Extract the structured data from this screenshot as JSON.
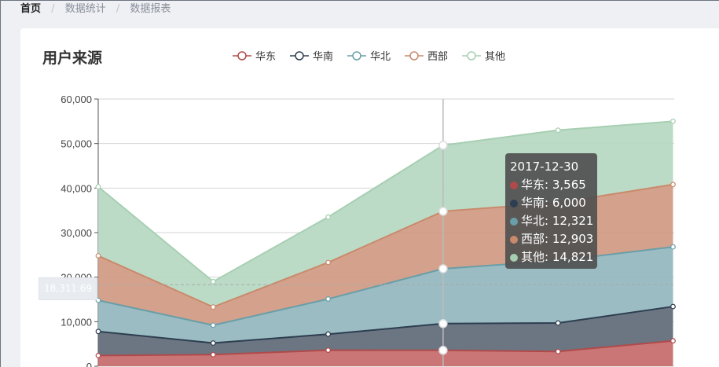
{
  "breadcrumb": {
    "home": "首页",
    "items": [
      "数据统计",
      "数据报表"
    ]
  },
  "card": {
    "title": "用户来源"
  },
  "tooltip": {
    "date": "2017-12-30",
    "rows": [
      {
        "name": "华东",
        "value": "3,565",
        "color": "#b04a4a"
      },
      {
        "name": "华南",
        "value": "6,000",
        "color": "#2d3e50"
      },
      {
        "name": "华北",
        "value": "12,321",
        "color": "#6a9ea8"
      },
      {
        "name": "西部",
        "value": "12,903",
        "color": "#c98a6c"
      },
      {
        "name": "其他",
        "value": "14,821",
        "color": "#a6cfb2"
      }
    ]
  },
  "crosshair": {
    "value": "18,311.69"
  },
  "chart_data": {
    "type": "area",
    "stacked": true,
    "title": "用户来源",
    "legend_position": "top",
    "grid": true,
    "ylim": [
      0,
      60000
    ],
    "y_ticks": [
      "0",
      "10,000",
      "20,000",
      "30,000",
      "40,000",
      "50,000",
      "60,000"
    ],
    "x": [
      "",
      "",
      "",
      "2017-12-30",
      "",
      ""
    ],
    "series": [
      {
        "name": "华东",
        "color": "#b04a4a",
        "fill": "#c56a6a",
        "values": [
          2400,
          2600,
          3600,
          3565,
          3300,
          5700
        ]
      },
      {
        "name": "华南",
        "color": "#2d3e50",
        "fill": "#5f6a78",
        "values": [
          5400,
          2600,
          3600,
          6000,
          6400,
          7700
        ]
      },
      {
        "name": "华北",
        "color": "#6a9ea8",
        "fill": "#92b6be",
        "values": [
          7000,
          4000,
          7900,
          12321,
          14000,
          13400
        ]
      },
      {
        "name": "西部",
        "color": "#c98a6c",
        "fill": "#d09a82",
        "values": [
          10000,
          4100,
          8200,
          12903,
          13000,
          14000
        ]
      },
      {
        "name": "其他",
        "color": "#a6cfb2",
        "fill": "#b6d8c2",
        "values": [
          15500,
          5700,
          10200,
          14821,
          16300,
          14200
        ]
      }
    ]
  }
}
